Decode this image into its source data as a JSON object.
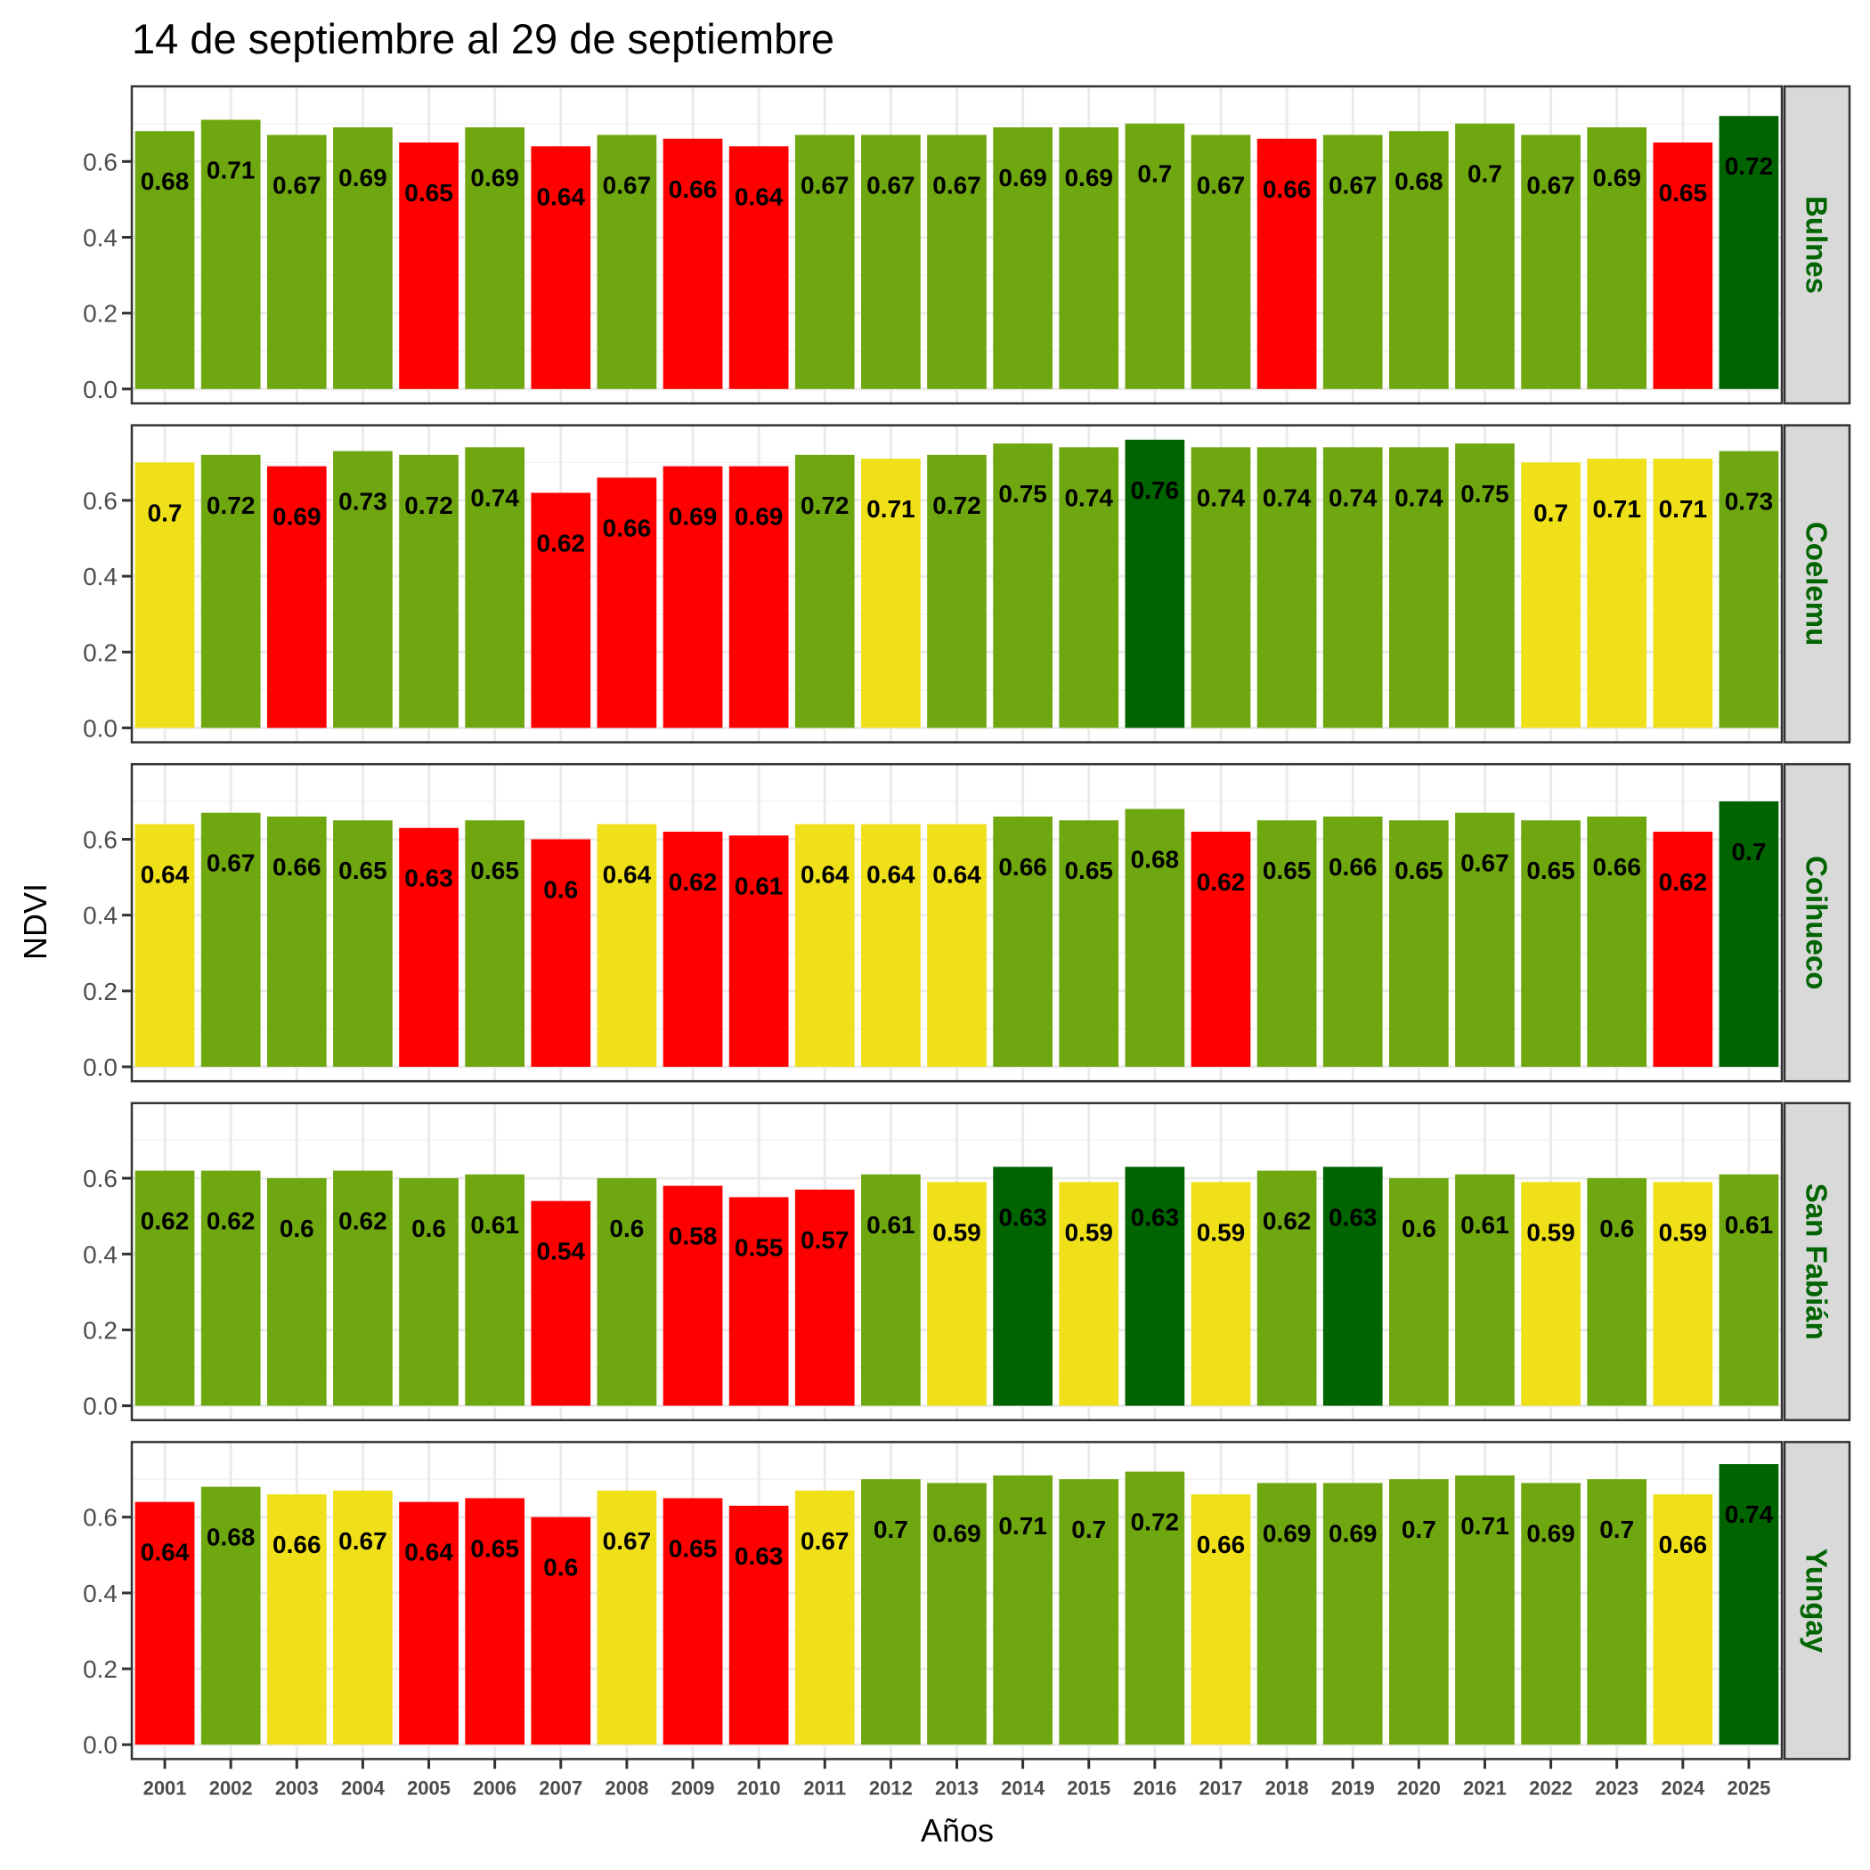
{
  "chart_data": {
    "type": "bar",
    "title": "14 de septiembre al 29 de septiembre",
    "xlabel": "Años",
    "ylabel": "NDVI",
    "ylim": [
      0,
      0.76
    ],
    "yticks": [
      "0.0",
      "0.2",
      "0.4",
      "0.6"
    ],
    "ytick_values": [
      0,
      0.2,
      0.4,
      0.6
    ],
    "grid": true,
    "facet_layout": "rows",
    "strip_text_color": "#006400",
    "categories": [
      "2001",
      "2002",
      "2003",
      "2004",
      "2005",
      "2006",
      "2007",
      "2008",
      "2009",
      "2010",
      "2011",
      "2012",
      "2013",
      "2014",
      "2015",
      "2016",
      "2017",
      "2018",
      "2019",
      "2020",
      "2021",
      "2022",
      "2023",
      "2024",
      "2025"
    ],
    "color_legend": {
      "red": "#FF0000",
      "yellow": "#EFE01A",
      "green": "#6FA711",
      "darkgreen": "#006400"
    },
    "panels": [
      {
        "name": "Bulnes",
        "values": [
          0.68,
          0.71,
          0.67,
          0.69,
          0.65,
          0.69,
          0.64,
          0.67,
          0.66,
          0.64,
          0.67,
          0.67,
          0.67,
          0.69,
          0.69,
          0.7,
          0.67,
          0.66,
          0.67,
          0.68,
          0.7,
          0.67,
          0.69,
          0.65,
          0.72
        ],
        "labels": [
          "0.68",
          "0.71",
          "0.67",
          "0.69",
          "0.65",
          "0.69",
          "0.64",
          "0.67",
          "0.66",
          "0.64",
          "0.67",
          "0.67",
          "0.67",
          "0.69",
          "0.69",
          "0.7",
          "0.67",
          "0.66",
          "0.67",
          "0.68",
          "0.7",
          "0.67",
          "0.69",
          "0.65",
          "0.72"
        ],
        "colors": [
          "green",
          "green",
          "green",
          "green",
          "red",
          "green",
          "red",
          "green",
          "red",
          "red",
          "green",
          "green",
          "green",
          "green",
          "green",
          "green",
          "green",
          "red",
          "green",
          "green",
          "green",
          "green",
          "green",
          "red",
          "darkgreen"
        ]
      },
      {
        "name": "Coelemu",
        "values": [
          0.7,
          0.72,
          0.69,
          0.73,
          0.72,
          0.74,
          0.62,
          0.66,
          0.69,
          0.69,
          0.72,
          0.71,
          0.72,
          0.75,
          0.74,
          0.76,
          0.74,
          0.74,
          0.74,
          0.74,
          0.75,
          0.7,
          0.71,
          0.71,
          0.73
        ],
        "labels": [
          "0.7",
          "0.72",
          "0.69",
          "0.73",
          "0.72",
          "0.74",
          "0.62",
          "0.66",
          "0.69",
          "0.69",
          "0.72",
          "0.71",
          "0.72",
          "0.75",
          "0.74",
          "0.76",
          "0.74",
          "0.74",
          "0.74",
          "0.74",
          "0.75",
          "0.7",
          "0.71",
          "0.71",
          "0.73"
        ],
        "colors": [
          "yellow",
          "green",
          "red",
          "green",
          "green",
          "green",
          "red",
          "red",
          "red",
          "red",
          "green",
          "yellow",
          "green",
          "green",
          "green",
          "darkgreen",
          "green",
          "green",
          "green",
          "green",
          "green",
          "yellow",
          "yellow",
          "yellow",
          "green"
        ]
      },
      {
        "name": "Coihueco",
        "values": [
          0.64,
          0.67,
          0.66,
          0.65,
          0.63,
          0.65,
          0.6,
          0.64,
          0.62,
          0.61,
          0.64,
          0.64,
          0.64,
          0.66,
          0.65,
          0.68,
          0.62,
          0.65,
          0.66,
          0.65,
          0.67,
          0.65,
          0.66,
          0.62,
          0.7
        ],
        "labels": [
          "0.64",
          "0.67",
          "0.66",
          "0.65",
          "0.63",
          "0.65",
          "0.6",
          "0.64",
          "0.62",
          "0.61",
          "0.64",
          "0.64",
          "0.64",
          "0.66",
          "0.65",
          "0.68",
          "0.62",
          "0.65",
          "0.66",
          "0.65",
          "0.67",
          "0.65",
          "0.66",
          "0.62",
          "0.7"
        ],
        "colors": [
          "yellow",
          "green",
          "green",
          "green",
          "red",
          "green",
          "red",
          "yellow",
          "red",
          "red",
          "yellow",
          "yellow",
          "yellow",
          "green",
          "green",
          "green",
          "red",
          "green",
          "green",
          "green",
          "green",
          "green",
          "green",
          "red",
          "darkgreen"
        ]
      },
      {
        "name": "San Fabián",
        "values": [
          0.62,
          0.62,
          0.6,
          0.62,
          0.6,
          0.61,
          0.54,
          0.6,
          0.58,
          0.55,
          0.57,
          0.61,
          0.59,
          0.63,
          0.59,
          0.63,
          0.59,
          0.62,
          0.63,
          0.6,
          0.61,
          0.59,
          0.6,
          0.59,
          0.61
        ],
        "labels": [
          "0.62",
          "0.62",
          "0.6",
          "0.62",
          "0.6",
          "0.61",
          "0.54",
          "0.6",
          "0.58",
          "0.55",
          "0.57",
          "0.61",
          "0.59",
          "0.63",
          "0.59",
          "0.63",
          "0.59",
          "0.62",
          "0.63",
          "0.6",
          "0.61",
          "0.59",
          "0.6",
          "0.59",
          "0.61"
        ],
        "colors": [
          "green",
          "green",
          "green",
          "green",
          "green",
          "green",
          "red",
          "green",
          "red",
          "red",
          "red",
          "green",
          "yellow",
          "darkgreen",
          "yellow",
          "darkgreen",
          "yellow",
          "green",
          "darkgreen",
          "green",
          "green",
          "yellow",
          "green",
          "yellow",
          "green"
        ]
      },
      {
        "name": "Yungay",
        "values": [
          0.64,
          0.68,
          0.66,
          0.67,
          0.64,
          0.65,
          0.6,
          0.67,
          0.65,
          0.63,
          0.67,
          0.7,
          0.69,
          0.71,
          0.7,
          0.72,
          0.66,
          0.69,
          0.69,
          0.7,
          0.71,
          0.69,
          0.7,
          0.66,
          0.74
        ],
        "labels": [
          "0.64",
          "0.68",
          "0.66",
          "0.67",
          "0.64",
          "0.65",
          "0.6",
          "0.67",
          "0.65",
          "0.63",
          "0.67",
          "0.7",
          "0.69",
          "0.71",
          "0.7",
          "0.72",
          "0.66",
          "0.69",
          "0.69",
          "0.7",
          "0.71",
          "0.69",
          "0.7",
          "0.66",
          "0.74"
        ],
        "colors": [
          "red",
          "green",
          "yellow",
          "yellow",
          "red",
          "red",
          "red",
          "yellow",
          "red",
          "red",
          "yellow",
          "green",
          "green",
          "green",
          "green",
          "green",
          "yellow",
          "green",
          "green",
          "green",
          "green",
          "green",
          "green",
          "yellow",
          "darkgreen"
        ]
      }
    ]
  }
}
